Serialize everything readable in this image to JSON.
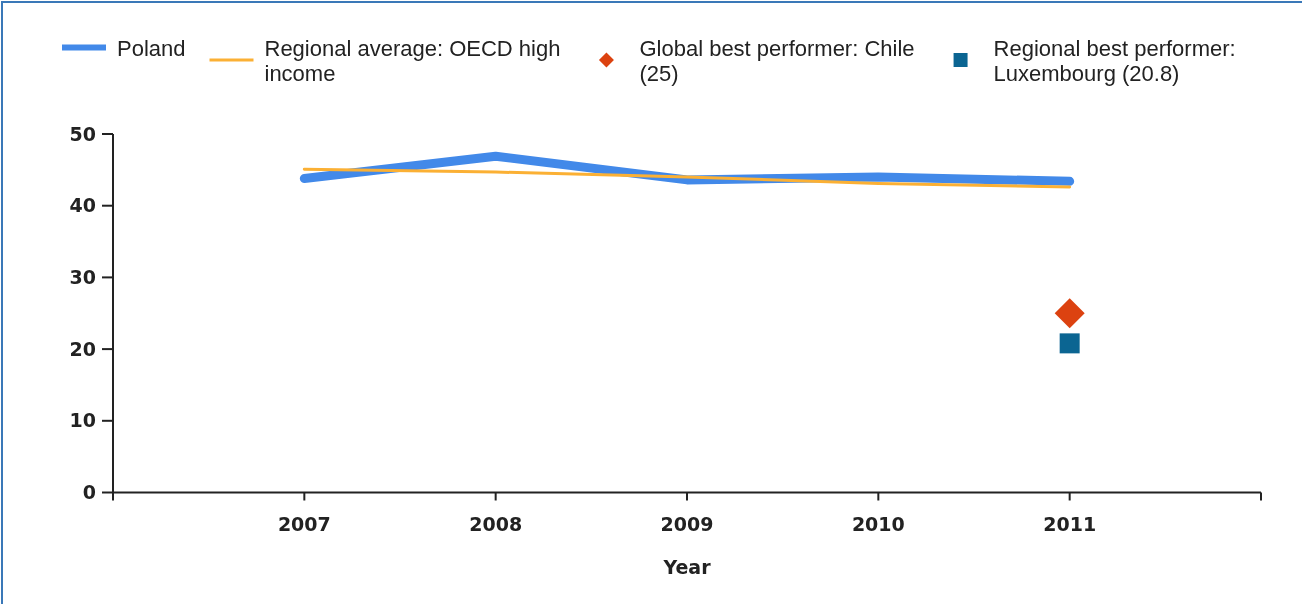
{
  "chart_data": {
    "type": "line",
    "xlabel": "Year",
    "x": [
      2007,
      2008,
      2009,
      2010,
      2011
    ],
    "xlim": [
      2006,
      2012
    ],
    "xticks": [
      {
        "value": 2006,
        "label": null
      },
      2007,
      2008,
      2009,
      2010,
      2011,
      {
        "value": 2012,
        "label": null
      }
    ],
    "ylim": [
      0,
      50
    ],
    "yticks": [
      0,
      10,
      20,
      30,
      40,
      50
    ],
    "legend": "top",
    "series": [
      {
        "name": "Poland",
        "color": "#4289e9",
        "values": [
          43.8,
          46.9,
          43.6,
          44.0,
          43.4
        ]
      },
      {
        "name": "Regional average: OECD high income",
        "color": "#fbb034",
        "values": [
          45.1,
          44.7,
          44.0,
          43.1,
          42.6
        ]
      },
      {
        "name": "Global best performer: Chile (25)",
        "type": "scatter",
        "color": "#dc4210",
        "marker": "diamond",
        "x": [
          2011
        ],
        "values": [
          25
        ]
      },
      {
        "name": "Regional best performer: Luxembourg (20.8)",
        "type": "scatter",
        "color": "#0b6592",
        "marker": "square",
        "x": [
          2011
        ],
        "values": [
          20.8
        ]
      }
    ]
  }
}
